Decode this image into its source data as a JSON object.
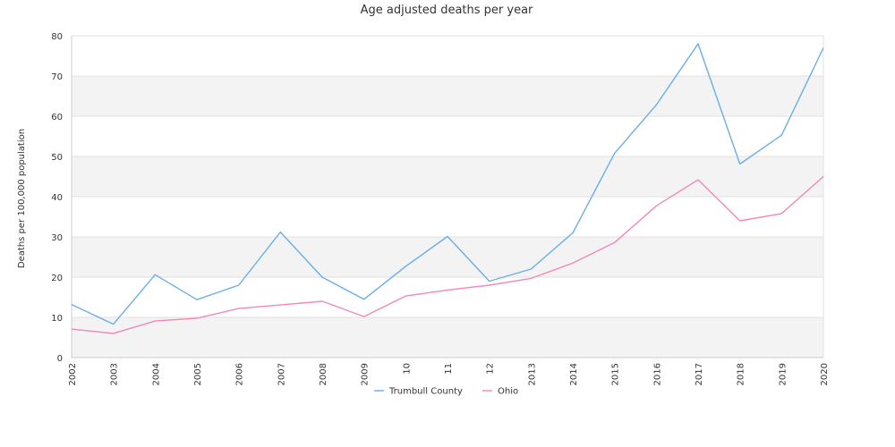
{
  "chart_data": {
    "type": "line",
    "title": "Age adjusted deaths per year",
    "ylabel": "Deaths per 100,000 population",
    "xlabel": "",
    "ylim": [
      0,
      80
    ],
    "yticks": [
      "0",
      "10",
      "20",
      "30",
      "40",
      "50",
      "60",
      "70",
      "80"
    ],
    "x": [
      "2002",
      "2003",
      "2004",
      "2005",
      "2006",
      "2007",
      "2008",
      "2009",
      "2010",
      "2011",
      "2012",
      "2013",
      "2014",
      "2015",
      "2016",
      "2017",
      "2018",
      "2019",
      "2020"
    ],
    "x_tick_labels": [
      "2002",
      "2003",
      "2004",
      "2005",
      "2006",
      "2007",
      "2008",
      "2009",
      "10",
      "11",
      "12",
      "2013",
      "2014",
      "2015",
      "2016",
      "2017",
      "2018",
      "2019",
      "2020"
    ],
    "series": [
      {
        "name": "Trumbull County",
        "color": "#6aaee8",
        "values": [
          13.2,
          8.3,
          20.6,
          14.4,
          18.0,
          31.2,
          20.0,
          14.5,
          22.7,
          30.1,
          19.0,
          22.0,
          31.0,
          50.8,
          62.8,
          78.0,
          48.1,
          55.3,
          77.0
        ]
      },
      {
        "name": "Ohio",
        "color": "#f089b8",
        "values": [
          7.1,
          6.0,
          9.1,
          9.8,
          12.2,
          13.1,
          14.0,
          10.2,
          15.3,
          16.8,
          18.0,
          19.7,
          23.5,
          28.6,
          37.7,
          44.2,
          34.0,
          35.8,
          45.0
        ]
      }
    ],
    "grid": "horizontal",
    "band_colors": [
      "#ffffff",
      "#f3f3f3"
    ],
    "legend_position": "bottom-center"
  }
}
